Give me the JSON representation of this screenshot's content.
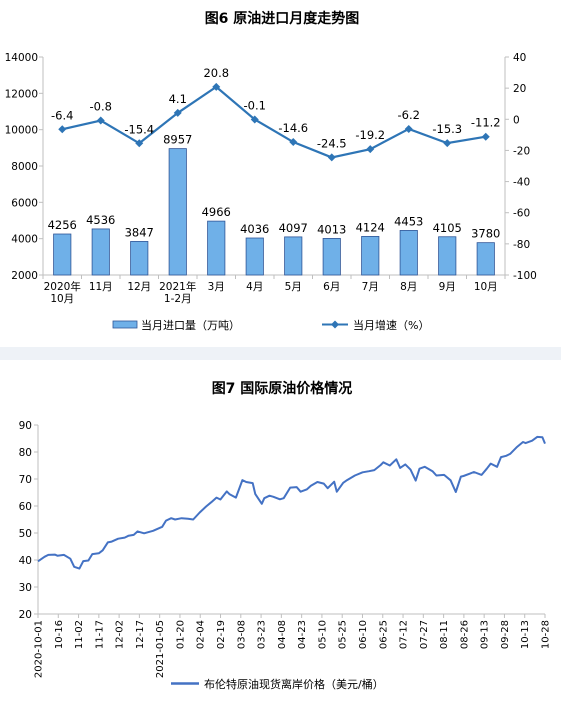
{
  "chart_data": [
    {
      "type": "bar+line",
      "title": "图6  原油进口月度走势图",
      "categories": [
        [
          "2020年",
          "10月"
        ],
        [
          "11月"
        ],
        [
          "12月"
        ],
        [
          "2021年",
          "1-2月"
        ],
        [
          "3月"
        ],
        [
          "4月"
        ],
        [
          "5月"
        ],
        [
          "6月"
        ],
        [
          "7月"
        ],
        [
          "8月"
        ],
        [
          "9月"
        ],
        [
          "10月"
        ]
      ],
      "series": [
        {
          "name": "当月进口量（万吨）",
          "type": "bar",
          "axis": "left",
          "color": "#6fb0e8",
          "values": [
            4256,
            4536,
            3847,
            8957,
            4966,
            4036,
            4097,
            4013,
            4124,
            4453,
            4105,
            3780
          ]
        },
        {
          "name": "当月增速（%）",
          "type": "line",
          "axis": "right",
          "color": "#2e75b6",
          "values": [
            -6.4,
            -0.8,
            -15.4,
            4.1,
            20.8,
            -0.1,
            -14.6,
            -24.5,
            -19.2,
            -6.2,
            -15.3,
            -11.2
          ],
          "labels": [
            "-6.4",
            "-0.8",
            "-15.4",
            "4.1",
            "20.8",
            "-0.1",
            "-14.6",
            "-24.5",
            "-19.2",
            "-6.2",
            "-15.3",
            "-11.2"
          ]
        }
      ],
      "y_left": {
        "min": 2000,
        "max": 14000,
        "ticks": [
          2000,
          4000,
          6000,
          8000,
          10000,
          12000,
          14000
        ]
      },
      "y_right": {
        "min": -100,
        "max": 40,
        "ticks": [
          -100,
          -80,
          -60,
          -40,
          -20,
          0,
          20,
          40
        ]
      },
      "legend": {
        "position": "bottom"
      },
      "grid": false
    },
    {
      "type": "line",
      "title": "图7  国际原油价格情况",
      "series": [
        {
          "name": "布伦特原油现货离岸价格（美元/桶）",
          "color": "#4472c4",
          "points": [
            [
              "2020-10-01",
              39.5
            ],
            [
              "2020-10-06",
              41.2
            ],
            [
              "2020-10-09",
              41.9
            ],
            [
              "2020-10-14",
              42.0
            ],
            [
              "2020-10-16",
              41.6
            ],
            [
              "2020-10-21",
              41.9
            ],
            [
              "2020-10-26",
              40.5
            ],
            [
              "2020-10-29",
              37.5
            ],
            [
              "2020-11-02",
              36.8
            ],
            [
              "2020-11-05",
              39.6
            ],
            [
              "2020-11-09",
              39.8
            ],
            [
              "2020-11-12",
              42.2
            ],
            [
              "2020-11-17",
              42.5
            ],
            [
              "2020-11-20",
              43.6
            ],
            [
              "2020-11-24",
              46.5
            ],
            [
              "2020-11-27",
              46.8
            ],
            [
              "2020-12-02",
              47.9
            ],
            [
              "2020-12-07",
              48.3
            ],
            [
              "2020-12-10",
              49.0
            ],
            [
              "2020-12-14",
              49.3
            ],
            [
              "2020-12-17",
              50.6
            ],
            [
              "2020-12-22",
              49.9
            ],
            [
              "2020-12-29",
              50.8
            ],
            [
              "2021-01-05",
              52.3
            ],
            [
              "2021-01-08",
              54.6
            ],
            [
              "2021-01-12",
              55.5
            ],
            [
              "2021-01-15",
              55.0
            ],
            [
              "2021-01-20",
              55.5
            ],
            [
              "2021-01-25",
              55.3
            ],
            [
              "2021-01-29",
              55.0
            ],
            [
              "2021-02-03",
              57.6
            ],
            [
              "2021-02-08",
              59.8
            ],
            [
              "2021-02-12",
              61.4
            ],
            [
              "2021-02-16",
              63.1
            ],
            [
              "2021-02-19",
              62.4
            ],
            [
              "2021-02-24",
              65.4
            ],
            [
              "2021-02-26",
              64.4
            ],
            [
              "2021-03-03",
              63.1
            ],
            [
              "2021-03-08",
              69.6
            ],
            [
              "2021-03-11",
              68.9
            ],
            [
              "2021-03-16",
              68.5
            ],
            [
              "2021-03-18",
              64.4
            ],
            [
              "2021-03-23",
              60.8
            ],
            [
              "2021-03-25",
              62.9
            ],
            [
              "2021-03-29",
              63.8
            ],
            [
              "2021-04-01",
              63.4
            ],
            [
              "2021-04-06",
              62.5
            ],
            [
              "2021-04-09",
              62.9
            ],
            [
              "2021-04-14",
              66.8
            ],
            [
              "2021-04-19",
              67.0
            ],
            [
              "2021-04-22",
              65.3
            ],
            [
              "2021-04-27",
              66.2
            ],
            [
              "2021-04-30",
              67.5
            ],
            [
              "2021-05-05",
              68.9
            ],
            [
              "2021-05-10",
              68.3
            ],
            [
              "2021-05-13",
              66.6
            ],
            [
              "2021-05-18",
              69.0
            ],
            [
              "2021-05-20",
              65.3
            ],
            [
              "2021-05-25",
              68.6
            ],
            [
              "2021-05-28",
              69.6
            ],
            [
              "2021-06-03",
              71.3
            ],
            [
              "2021-06-09",
              72.5
            ],
            [
              "2021-06-14",
              72.9
            ],
            [
              "2021-06-18",
              73.3
            ],
            [
              "2021-06-23",
              75.2
            ],
            [
              "2021-06-25",
              76.2
            ],
            [
              "2021-06-30",
              75.0
            ],
            [
              "2021-07-05",
              77.3
            ],
            [
              "2021-07-08",
              74.1
            ],
            [
              "2021-07-12",
              75.4
            ],
            [
              "2021-07-16",
              73.5
            ],
            [
              "2021-07-20",
              69.4
            ],
            [
              "2021-07-23",
              73.8
            ],
            [
              "2021-07-27",
              74.5
            ],
            [
              "2021-08-02",
              72.9
            ],
            [
              "2021-08-05",
              71.3
            ],
            [
              "2021-08-11",
              71.5
            ],
            [
              "2021-08-16",
              69.5
            ],
            [
              "2021-08-20",
              65.2
            ],
            [
              "2021-08-24",
              70.9
            ],
            [
              "2021-08-26",
              71.1
            ],
            [
              "2021-08-31",
              72.0
            ],
            [
              "2021-09-03",
              72.6
            ],
            [
              "2021-09-09",
              71.5
            ],
            [
              "2021-09-13",
              73.8
            ],
            [
              "2021-09-16",
              75.7
            ],
            [
              "2021-09-21",
              74.5
            ],
            [
              "2021-09-24",
              78.1
            ],
            [
              "2021-09-28",
              78.6
            ],
            [
              "2021-10-01",
              79.3
            ],
            [
              "2021-10-06",
              81.7
            ],
            [
              "2021-10-11",
              83.7
            ],
            [
              "2021-10-13",
              83.3
            ],
            [
              "2021-10-18",
              84.2
            ],
            [
              "2021-10-22",
              85.6
            ],
            [
              "2021-10-26",
              85.5
            ],
            [
              "2021-10-28",
              83.1
            ]
          ]
        }
      ],
      "x_ticks": [
        "2020-10-01",
        "10-16",
        "11-02",
        "11-17",
        "12-02",
        "12-17",
        "2021-01-05",
        "01-20",
        "02-04",
        "02-19",
        "03-08",
        "03-23",
        "04-08",
        "04-23",
        "05-10",
        "05-25",
        "06-10",
        "06-25",
        "07-12",
        "07-27",
        "08-11",
        "08-26",
        "09-13",
        "09-28",
        "10-13",
        "10-28"
      ],
      "x_range": [
        "2020-10-01",
        "2021-10-28"
      ],
      "y": {
        "min": 20,
        "max": 90,
        "ticks": [
          20,
          30,
          40,
          50,
          60,
          70,
          80,
          90
        ]
      },
      "legend": {
        "position": "bottom"
      },
      "grid": false
    }
  ]
}
